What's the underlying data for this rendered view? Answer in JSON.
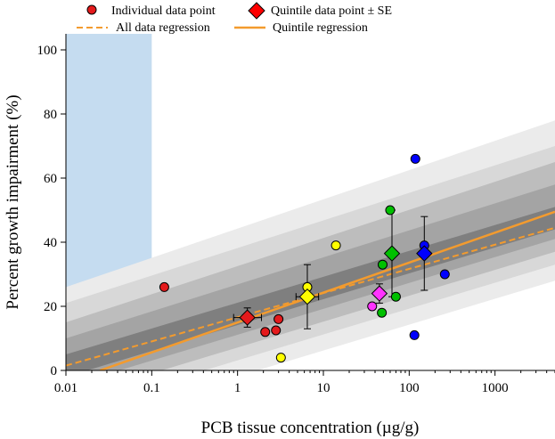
{
  "chart_data": {
    "type": "scatter",
    "title": "",
    "xlabel": "PCB tissue concentration (µg/g)",
    "ylabel": "Percent growth impairment (%)",
    "xscale": "log",
    "xlim": [
      0.01,
      5000
    ],
    "ylim": [
      0,
      105
    ],
    "x_ticks": [
      0.01,
      0.1,
      1,
      10,
      100,
      1000
    ],
    "x_tick_labels": [
      "0.01",
      "0.1",
      "1",
      "10",
      "100",
      "1000"
    ],
    "y_ticks": [
      0,
      20,
      40,
      60,
      80,
      100
    ],
    "y_tick_labels": [
      "0",
      "20",
      "40",
      "60",
      "80",
      "100"
    ],
    "grid": false,
    "legend": {
      "placement": "top",
      "entries": {
        "individual": "Individual data point",
        "quintile": "Quintile data point ± SE",
        "all_reg": "All data regression",
        "quintile_reg": "Quintile regression"
      }
    },
    "shaded_region": {
      "x": [
        0.01,
        0.1
      ],
      "color": "#c5dcf0"
    },
    "regression_lines": [
      {
        "id": "all_reg",
        "style": "dashed",
        "color": "#f39b2e",
        "points": [
          [
            0.01,
            1.5
          ],
          [
            5000,
            44.5
          ]
        ]
      },
      {
        "id": "quintile_reg",
        "style": "solid",
        "color": "#f39b2e",
        "points": [
          [
            0.025,
            0
          ],
          [
            5000,
            49.5
          ]
        ]
      }
    ],
    "confidence_bands": [
      {
        "color": "#ebebeb",
        "lower": [
          [
            0.01,
            -18
          ],
          [
            5000,
            28
          ]
        ],
        "upper": [
          [
            0.01,
            26
          ],
          [
            5000,
            78
          ]
        ]
      },
      {
        "color": "#d8d8d8",
        "lower": [
          [
            0.01,
            -13
          ],
          [
            5000,
            33
          ]
        ],
        "upper": [
          [
            0.01,
            21
          ],
          [
            5000,
            70
          ]
        ]
      },
      {
        "color": "#bdbdbd",
        "lower": [
          [
            0.01,
            -9
          ],
          [
            5000,
            37
          ]
        ],
        "upper": [
          [
            0.01,
            15
          ],
          [
            5000,
            65
          ]
        ]
      },
      {
        "color": "#a4a4a4",
        "lower": [
          [
            0.01,
            -5
          ],
          [
            5000,
            41
          ]
        ],
        "upper": [
          [
            0.01,
            10
          ],
          [
            5000,
            58
          ]
        ]
      },
      {
        "color": "#7f7f7f",
        "lower": [
          [
            0.01,
            -2
          ],
          [
            5000,
            44
          ]
        ],
        "upper": [
          [
            0.01,
            5
          ],
          [
            5000,
            51
          ]
        ]
      }
    ],
    "series": [
      {
        "color": "#e41a1c",
        "points": [
          [
            0.14,
            26
          ],
          [
            1.3,
            16.5
          ],
          [
            2.1,
            12
          ],
          [
            2.8,
            12.5
          ],
          [
            3.0,
            16
          ]
        ],
        "quintile": {
          "x": 1.3,
          "y": 16.5,
          "xerr": [
            0.9,
            1.9
          ],
          "yerr": [
            13.5,
            19.5
          ]
        }
      },
      {
        "color": "#ffff00",
        "points": [
          [
            3.2,
            4
          ],
          [
            6.5,
            26
          ],
          [
            14,
            39
          ]
        ],
        "quintile": {
          "x": 6.5,
          "y": 23,
          "xerr": [
            4.8,
            8.8
          ],
          "yerr": [
            13,
            33
          ]
        }
      },
      {
        "color": "#ff33ff",
        "points": [
          [
            37,
            20
          ],
          [
            45,
            24
          ]
        ],
        "quintile": {
          "x": 45,
          "y": 24,
          "xerr": [
            40,
            50
          ],
          "yerr": [
            21,
            27
          ]
        }
      },
      {
        "color": "#00c000",
        "points": [
          [
            48,
            18
          ],
          [
            49,
            33
          ],
          [
            60,
            50
          ],
          [
            70,
            23
          ]
        ],
        "quintile": {
          "x": 63,
          "y": 36.5,
          "xerr": [
            58,
            69
          ],
          "yerr": [
            23,
            50
          ]
        }
      },
      {
        "color": "#0000ff",
        "points": [
          [
            115,
            11
          ],
          [
            118,
            66
          ],
          [
            150,
            39
          ],
          [
            260,
            30
          ]
        ],
        "quintile": {
          "x": 150,
          "y": 36.5,
          "xerr": [
            140,
            160
          ],
          "yerr": [
            25,
            48
          ]
        }
      }
    ]
  }
}
